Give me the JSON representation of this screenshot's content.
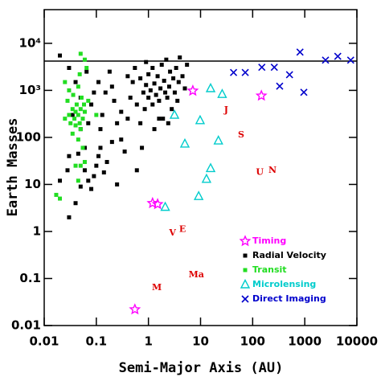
{
  "chart_data": {
    "type": "scatter",
    "x_label": "Semi-Major Axis (AU)",
    "y_label": "Earth Masses",
    "log_x": true,
    "log_y": true,
    "xlim": [
      0.01,
      10000
    ],
    "ylim": [
      0.01,
      52000
    ],
    "xticks": [
      0.01,
      0.1,
      1,
      10,
      100,
      1000,
      10000
    ],
    "yticks": [
      0.01,
      0.1,
      1,
      10,
      100,
      {
        "value": 1000,
        "label": "10³"
      },
      {
        "value": 10000,
        "label": "10⁴"
      }
    ],
    "reference_line": {
      "y": 4200,
      "color": "#000000"
    },
    "series": [
      {
        "name": "Timing",
        "color": "#ff00ff",
        "marker": "star",
        "x": [
          0.55,
          1.2,
          1.5,
          147,
          7.1
        ],
        "y": [
          0.022,
          4.0,
          3.8,
          770,
          980
        ]
      },
      {
        "name": "Radial Velocity",
        "color": "#000000",
        "marker": "square",
        "x": [
          0.02,
          0.03,
          0.04,
          0.05,
          0.05,
          0.045,
          0.06,
          0.07,
          0.08,
          0.09,
          0.1,
          0.11,
          0.12,
          0.13,
          0.15,
          0.18,
          0.2,
          0.22,
          0.25,
          0.3,
          0.35,
          0.4,
          0.45,
          0.5,
          0.55,
          0.6,
          0.7,
          0.7,
          0.8,
          0.85,
          0.9,
          1.0,
          1.0,
          1.1,
          1.2,
          1.2,
          1.3,
          1.4,
          1.5,
          1.6,
          1.7,
          1.8,
          1.9,
          2.0,
          2.1,
          2.2,
          2.3,
          2.5,
          2.6,
          2.8,
          3.0,
          3.2,
          3.4,
          3.6,
          3.8,
          4.0,
          4.5,
          5.0,
          5.5,
          0.035,
          0.03,
          0.04,
          0.05,
          0.06,
          0.07,
          0.08,
          0.09,
          0.12,
          0.14,
          0.16,
          0.2,
          0.25,
          0.3,
          0.6,
          0.75,
          1.3,
          0.4,
          0.9,
          1.6,
          2.4,
          0.11,
          0.065,
          0.028,
          0.03,
          0.02
        ],
        "y": [
          5500,
          3000,
          1500,
          700,
          150,
          45,
          20,
          12,
          8,
          15,
          25,
          40,
          60,
          300,
          900,
          2500,
          1200,
          600,
          200,
          90,
          50,
          250,
          700,
          1500,
          3000,
          500,
          200,
          1800,
          900,
          400,
          1300,
          700,
          2200,
          1000,
          500,
          3000,
          1400,
          800,
          2000,
          600,
          1100,
          3500,
          250,
          1600,
          900,
          4500,
          700,
          1200,
          2500,
          400,
          1800,
          900,
          3000,
          600,
          1500,
          5000,
          2000,
          1100,
          3500,
          300,
          2,
          4,
          9,
          60,
          200,
          500,
          900,
          150,
          18,
          30,
          80,
          10,
          350,
          20,
          60,
          150,
          2000,
          4000,
          250,
          200,
          1500,
          2500,
          20,
          40,
          12
        ]
      },
      {
        "name": "Transit",
        "color": "#22dd22",
        "marker": "square",
        "x": [
          0.017,
          0.02,
          0.025,
          0.025,
          0.028,
          0.03,
          0.03,
          0.032,
          0.035,
          0.035,
          0.038,
          0.04,
          0.04,
          0.042,
          0.045,
          0.045,
          0.045,
          0.048,
          0.05,
          0.05,
          0.05,
          0.055,
          0.055,
          0.06,
          0.06,
          0.065,
          0.07,
          0.05,
          0.045,
          0.04,
          0.052,
          0.058,
          0.036,
          0.048,
          0.1,
          0.06
        ],
        "y": [
          6,
          5,
          250,
          1500,
          600,
          300,
          1000,
          200,
          400,
          120,
          250,
          350,
          180,
          500,
          300,
          90,
          1200,
          200,
          400,
          150,
          6000,
          250,
          60,
          350,
          30,
          3000,
          600,
          25,
          12,
          25,
          700,
          500,
          800,
          2200,
          300,
          4500
        ]
      },
      {
        "name": "Microlensing",
        "color": "#00cccc",
        "marker": "triangle",
        "x": [
          3.16,
          9.8,
          5.0,
          22,
          15.6,
          13,
          9.2,
          2.1,
          15.6,
          26
        ],
        "y": [
          300,
          230,
          73,
          85,
          22,
          13,
          5.6,
          3.3,
          1100,
          830
        ]
      },
      {
        "name": "Direct Imaging",
        "color": "#0000cc",
        "marker": "cross",
        "x": [
          43,
          72,
          150,
          260,
          330,
          510,
          810,
          960,
          2500,
          4300,
          7600
        ],
        "y": [
          2400,
          2400,
          3100,
          3100,
          1230,
          2150,
          6500,
          910,
          4400,
          5300,
          4400
        ]
      }
    ],
    "planets": {
      "color": "#dd0000",
      "labels": [
        "M",
        "V",
        "E",
        "Ma",
        "J",
        "S",
        "U",
        "N"
      ],
      "x": [
        1.45,
        2.9,
        4.5,
        8.3,
        31,
        60,
        137,
        240
      ],
      "y": [
        0.063,
        0.93,
        1.1,
        0.12,
        380,
        112,
        18,
        20
      ]
    }
  }
}
